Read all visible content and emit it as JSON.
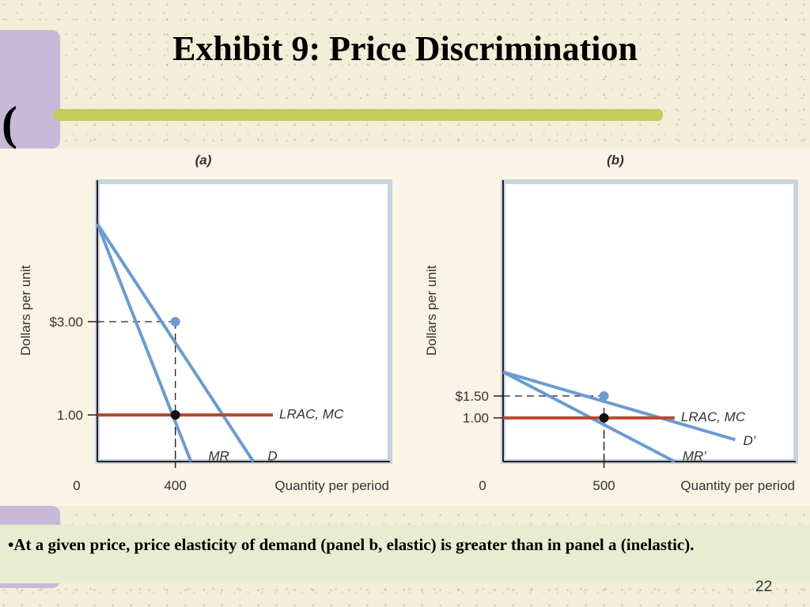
{
  "slide": {
    "title": "Exhibit 9: Price Discrimination",
    "bullet": "•At a given price, price elasticity of demand (panel b, elastic) is greater than in panel a (inelastic).",
    "page_number": "22"
  },
  "colors": {
    "curve_blue": "#6b9bd0",
    "cost_red": "#b54a30",
    "title_rule": "#c4cc5a",
    "deco_lavender": "#c9b9d8"
  },
  "chart_data": [
    {
      "type": "line",
      "panel_label": "(a)",
      "xlabel": "Quantity per period",
      "ylabel": "Dollars per unit",
      "x_ticks": [
        {
          "value": 0,
          "label": "0"
        },
        {
          "value": 400,
          "label": "400"
        }
      ],
      "y_ticks": [
        {
          "value": 3.0,
          "label": "$3.00"
        },
        {
          "value": 1.0,
          "label": "1.00"
        }
      ],
      "xlim": [
        0,
        1500
      ],
      "ylim": [
        0,
        6
      ],
      "series": [
        {
          "name": "D",
          "style": "demand",
          "points": [
            [
              0,
              5.1
            ],
            [
              800,
              0.0
            ]
          ]
        },
        {
          "name": "MR",
          "style": "demand",
          "points": [
            [
              0,
              5.1
            ],
            [
              480,
              0.0
            ]
          ]
        },
        {
          "name": "LRAC, MC",
          "style": "cost",
          "points": [
            [
              0,
              1.0
            ],
            [
              900,
              1.0
            ]
          ]
        }
      ],
      "points": [
        {
          "x": 400,
          "y": 3.0,
          "style": "price"
        },
        {
          "x": 400,
          "y": 1.0,
          "style": "quantity"
        }
      ]
    },
    {
      "type": "line",
      "panel_label": "(b)",
      "xlabel": "Quantity per period",
      "ylabel": "Dollars per unit",
      "x_ticks": [
        {
          "value": 0,
          "label": "0"
        },
        {
          "value": 500,
          "label": "500"
        }
      ],
      "y_ticks": [
        {
          "value": 1.5,
          "label": "$1.50"
        },
        {
          "value": 1.0,
          "label": "1.00"
        }
      ],
      "xlim": [
        0,
        1450
      ],
      "ylim": [
        0,
        6.4
      ],
      "series": [
        {
          "name": "D'",
          "style": "demand",
          "points": [
            [
              0,
              2.05
            ],
            [
              1150,
              0.5
            ]
          ]
        },
        {
          "name": "MR'",
          "style": "demand",
          "points": [
            [
              0,
              2.05
            ],
            [
              850,
              0.0
            ]
          ]
        },
        {
          "name": "LRAC, MC",
          "style": "cost",
          "points": [
            [
              0,
              1.0
            ],
            [
              850,
              1.0
            ]
          ]
        }
      ],
      "points": [
        {
          "x": 500,
          "y": 1.5,
          "style": "price"
        },
        {
          "x": 500,
          "y": 1.0,
          "style": "quantity"
        }
      ]
    }
  ]
}
